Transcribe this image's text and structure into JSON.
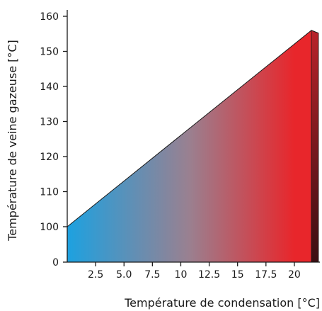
{
  "chart_data": {
    "type": "area",
    "title": "",
    "xlabel": "Température de condensation [°C]",
    "ylabel": "Température de veine gazeuse [°C]",
    "xlim": [
      0,
      22.5
    ],
    "x_ticks": [
      2.5,
      5.0,
      7.5,
      10,
      12.5,
      15,
      17.5,
      20
    ],
    "x_tick_labels": [
      "2.5",
      "5.0",
      "7.5",
      "10",
      "12.5",
      "15",
      "17.5",
      "20"
    ],
    "y_ticks": [
      0,
      100,
      110,
      120,
      130,
      140,
      150,
      160
    ],
    "y_tick_labels": [
      "0",
      "100",
      "110",
      "120",
      "130",
      "140",
      "150",
      "160"
    ],
    "series": [
      {
        "x": [
          0,
          21.5
        ],
        "y": [
          100,
          156
        ]
      }
    ],
    "grid": false,
    "colors": {
      "gradient_start": "#1da1e0",
      "gradient_mid": "#9a8090",
      "gradient_end": "#e8262b",
      "side_face_top": "#b8232a",
      "side_face_bottom": "#3a0e12",
      "outline": "#1a1a1a"
    }
  }
}
